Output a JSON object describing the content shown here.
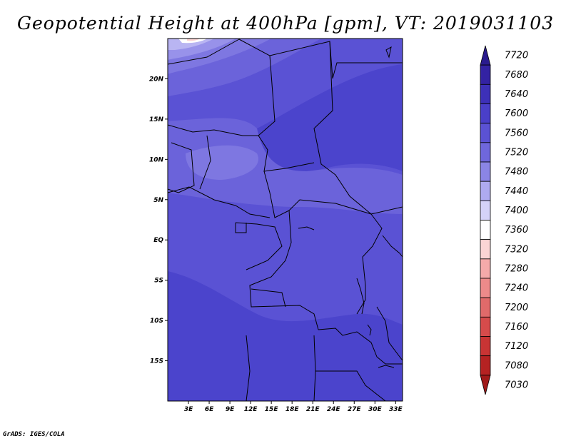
{
  "title": "Geopotential Height at 400hPa [gpm], VT: 2019031103",
  "credit": "GrADS: IGES/COLA",
  "map": {
    "lon_range": [
      0,
      34
    ],
    "lat_range": [
      -20,
      25
    ],
    "lat_ticks": [
      {
        "value": 20,
        "label": "20N"
      },
      {
        "value": 15,
        "label": "15N"
      },
      {
        "value": 10,
        "label": "10N"
      },
      {
        "value": 5,
        "label": "5N"
      },
      {
        "value": 0,
        "label": "EQ"
      },
      {
        "value": -5,
        "label": "5S"
      },
      {
        "value": -10,
        "label": "10S"
      },
      {
        "value": -15,
        "label": "15S"
      }
    ],
    "lon_ticks": [
      {
        "value": 3,
        "label": "3E"
      },
      {
        "value": 6,
        "label": "6E"
      },
      {
        "value": 9,
        "label": "9E"
      },
      {
        "value": 12,
        "label": "12E"
      },
      {
        "value": 15,
        "label": "15E"
      },
      {
        "value": 18,
        "label": "18E"
      },
      {
        "value": 21,
        "label": "21E"
      },
      {
        "value": 24,
        "label": "24E"
      },
      {
        "value": 27,
        "label": "27E"
      },
      {
        "value": 30,
        "label": "30E"
      },
      {
        "value": 33,
        "label": "33E"
      }
    ]
  },
  "colorbar": {
    "levels": [
      "7720",
      "7680",
      "7640",
      "7600",
      "7560",
      "7520",
      "7480",
      "7440",
      "7400",
      "7360",
      "7320",
      "7280",
      "7240",
      "7200",
      "7160",
      "7120",
      "7080",
      "7030"
    ],
    "colors": [
      "#2a1b8e",
      "#3322a3",
      "#3d30b8",
      "#4a3fc9",
      "#5b52d4",
      "#6f67dc",
      "#8b85e6",
      "#aeaaf0",
      "#d4d2f8",
      "#ffffff",
      "#fbd5d5",
      "#f4aaaa",
      "#ec8a8a",
      "#e06a6a",
      "#d64b4b",
      "#c83434",
      "#b52222",
      "#a01a1a"
    ]
  },
  "field_colors": {
    "c7680": "#3f38c2",
    "c7640": "#4b44cc",
    "c7600": "#5a52d4",
    "c7560": "#6b63da",
    "c7520": "#7e77e1",
    "c7480": "#9892ea",
    "c7440": "#b9b5f2",
    "c7400": "#e1dffa",
    "c7360": "#ffffff",
    "c7320": "#fbd5d5"
  }
}
